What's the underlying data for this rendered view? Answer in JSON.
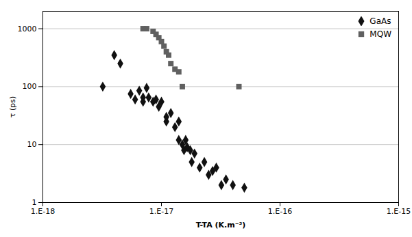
{
  "chart_data": {
    "type": "scatter",
    "xlabel": "T-TA (K.m⁻³)",
    "ylabel": "τ (ps)",
    "log": true,
    "grid": "y",
    "legend": "upper right",
    "xlim": [
      1e-18,
      1e-15
    ],
    "ylim": [
      1,
      2000
    ],
    "xticks": [
      {
        "value": 1e-18,
        "label": "1.E-18"
      },
      {
        "value": 1e-17,
        "label": "1.E-17"
      },
      {
        "value": 1e-16,
        "label": "1.E-16"
      },
      {
        "value": 1e-15,
        "label": "1.E-15"
      }
    ],
    "yticks": [
      1,
      10,
      100,
      1000
    ],
    "series": [
      {
        "name": "GaAs",
        "color": "#111111",
        "marker": "diamond",
        "x": [
          3.2e-18,
          4e-18,
          4.5e-18,
          5.5e-18,
          6e-18,
          6.5e-18,
          7e-18,
          7.5e-18,
          7e-18,
          7.8e-18,
          8.5e-18,
          9e-18,
          9.5e-18,
          1e-17,
          1.1e-17,
          1.1e-17,
          1.2e-17,
          1.3e-17,
          1.4e-17,
          1.4e-17,
          1.5e-17,
          1.6e-17,
          1.55e-17,
          1.65e-17,
          1.75e-17,
          1.8e-17,
          1.9e-17,
          2.1e-17,
          2.3e-17,
          2.5e-17,
          2.7e-17,
          2.9e-17,
          3.2e-17,
          3.5e-17,
          4e-17,
          5e-17
        ],
        "values": [
          100,
          350,
          250,
          75,
          60,
          85,
          65,
          95,
          55,
          65,
          55,
          60,
          45,
          55,
          30,
          25,
          35,
          20,
          25,
          12,
          10,
          12,
          8,
          9,
          8,
          5,
          7,
          4,
          5,
          3,
          3.5,
          4,
          2,
          2.5,
          2,
          1.8
        ]
      },
      {
        "name": "MQW",
        "color": "#606060",
        "marker": "square",
        "x": [
          7e-18,
          7.5e-18,
          8.5e-18,
          9e-18,
          9.5e-18,
          1e-17,
          1.05e-17,
          1.1e-17,
          1.15e-17,
          1.2e-17,
          1.3e-17,
          1.4e-17,
          1.5e-17,
          4.5e-17
        ],
        "values": [
          1000,
          1000,
          900,
          800,
          700,
          600,
          500,
          400,
          350,
          250,
          200,
          180,
          100,
          100
        ]
      }
    ]
  }
}
